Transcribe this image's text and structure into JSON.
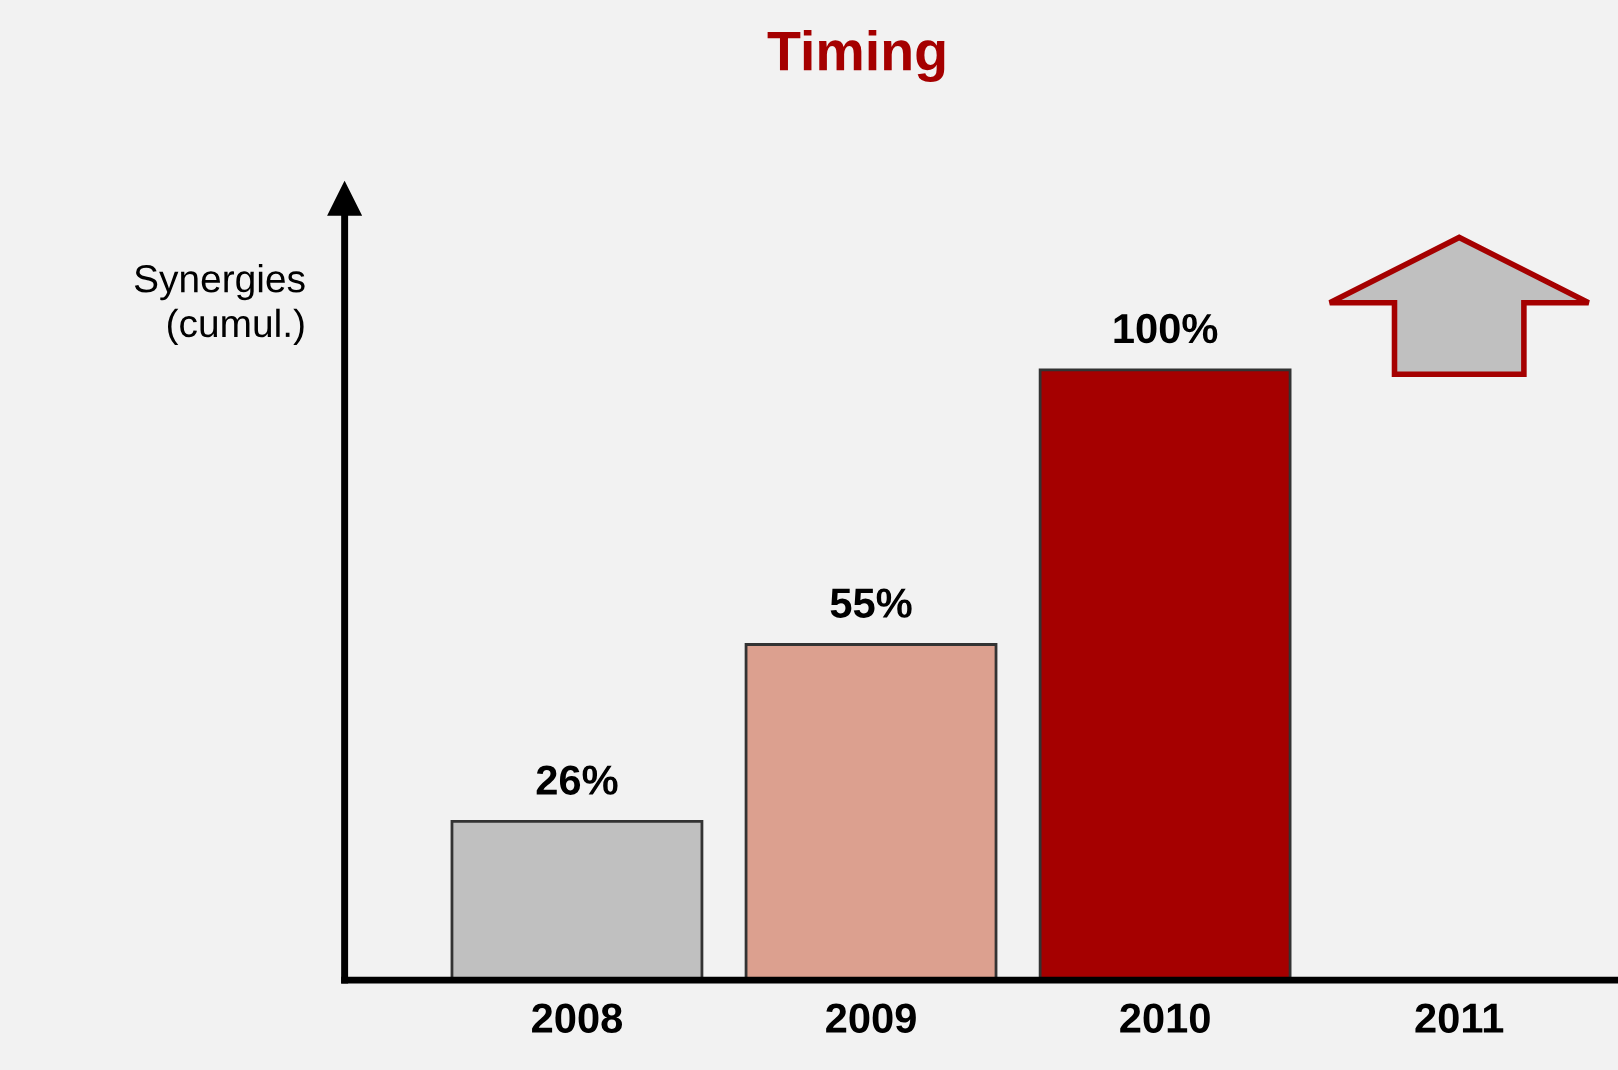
{
  "chart_data": {
    "type": "bar",
    "title": "Timing",
    "ylabel": "Synergies\n(cumul.)",
    "categories": [
      "2008",
      "2009",
      "2010",
      "2011"
    ],
    "values": [
      26,
      55,
      100,
      null
    ],
    "colors": [
      "#c0c0c0",
      "#dca08f",
      "#a50000",
      "#c0c0c0"
    ],
    "value_labels": [
      "26%",
      "55%",
      "100%",
      null
    ],
    "grid": false,
    "legend": false,
    "tick_labels": "x"
  }
}
